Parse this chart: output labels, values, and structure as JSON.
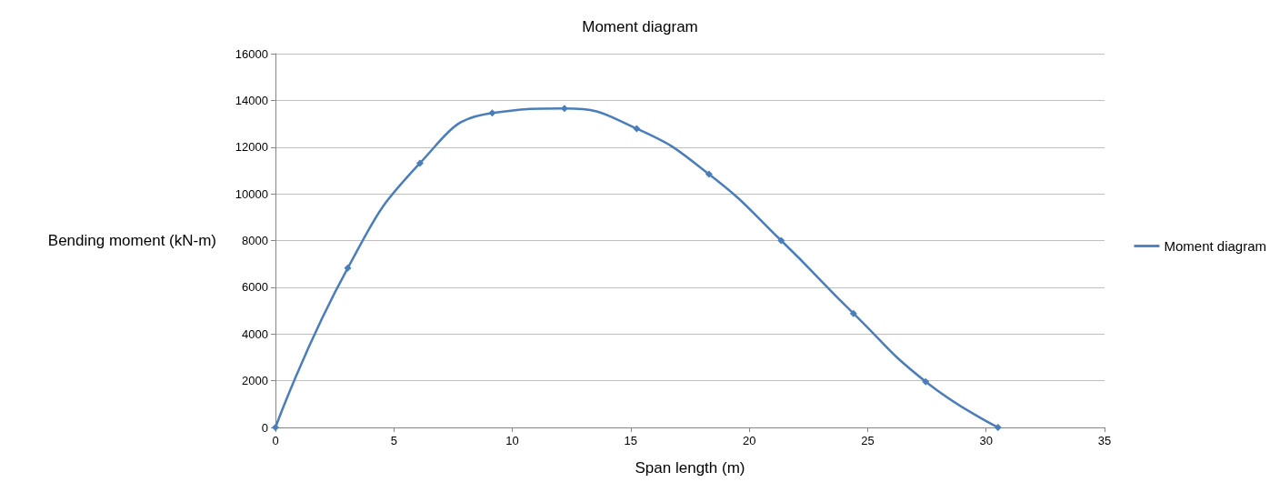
{
  "chart_data": {
    "type": "line",
    "title": "Moment diagram",
    "xlabel": "Span length (m)",
    "ylabel": "Bending moment (kN-m)",
    "x": [
      0,
      3.05,
      6.1,
      9.15,
      12.2,
      15.25,
      18.3,
      21.35,
      24.4,
      27.45,
      30.5
    ],
    "series": [
      {
        "name": "Moment diagram",
        "color": "#4a7ebb",
        "values": [
          0,
          6820,
          11310,
          13460,
          13650,
          12790,
          10840,
          8000,
          4880,
          1960,
          0
        ]
      }
    ],
    "xlim": [
      0,
      35
    ],
    "xticks": [
      0,
      5,
      10,
      15,
      20,
      25,
      30,
      35
    ],
    "ylim": [
      0,
      16000
    ],
    "yticks": [
      0,
      2000,
      4000,
      6000,
      8000,
      10000,
      12000,
      14000,
      16000
    ],
    "grid": "y",
    "legend": "right",
    "marker": "diamond",
    "line_style": "solid"
  }
}
